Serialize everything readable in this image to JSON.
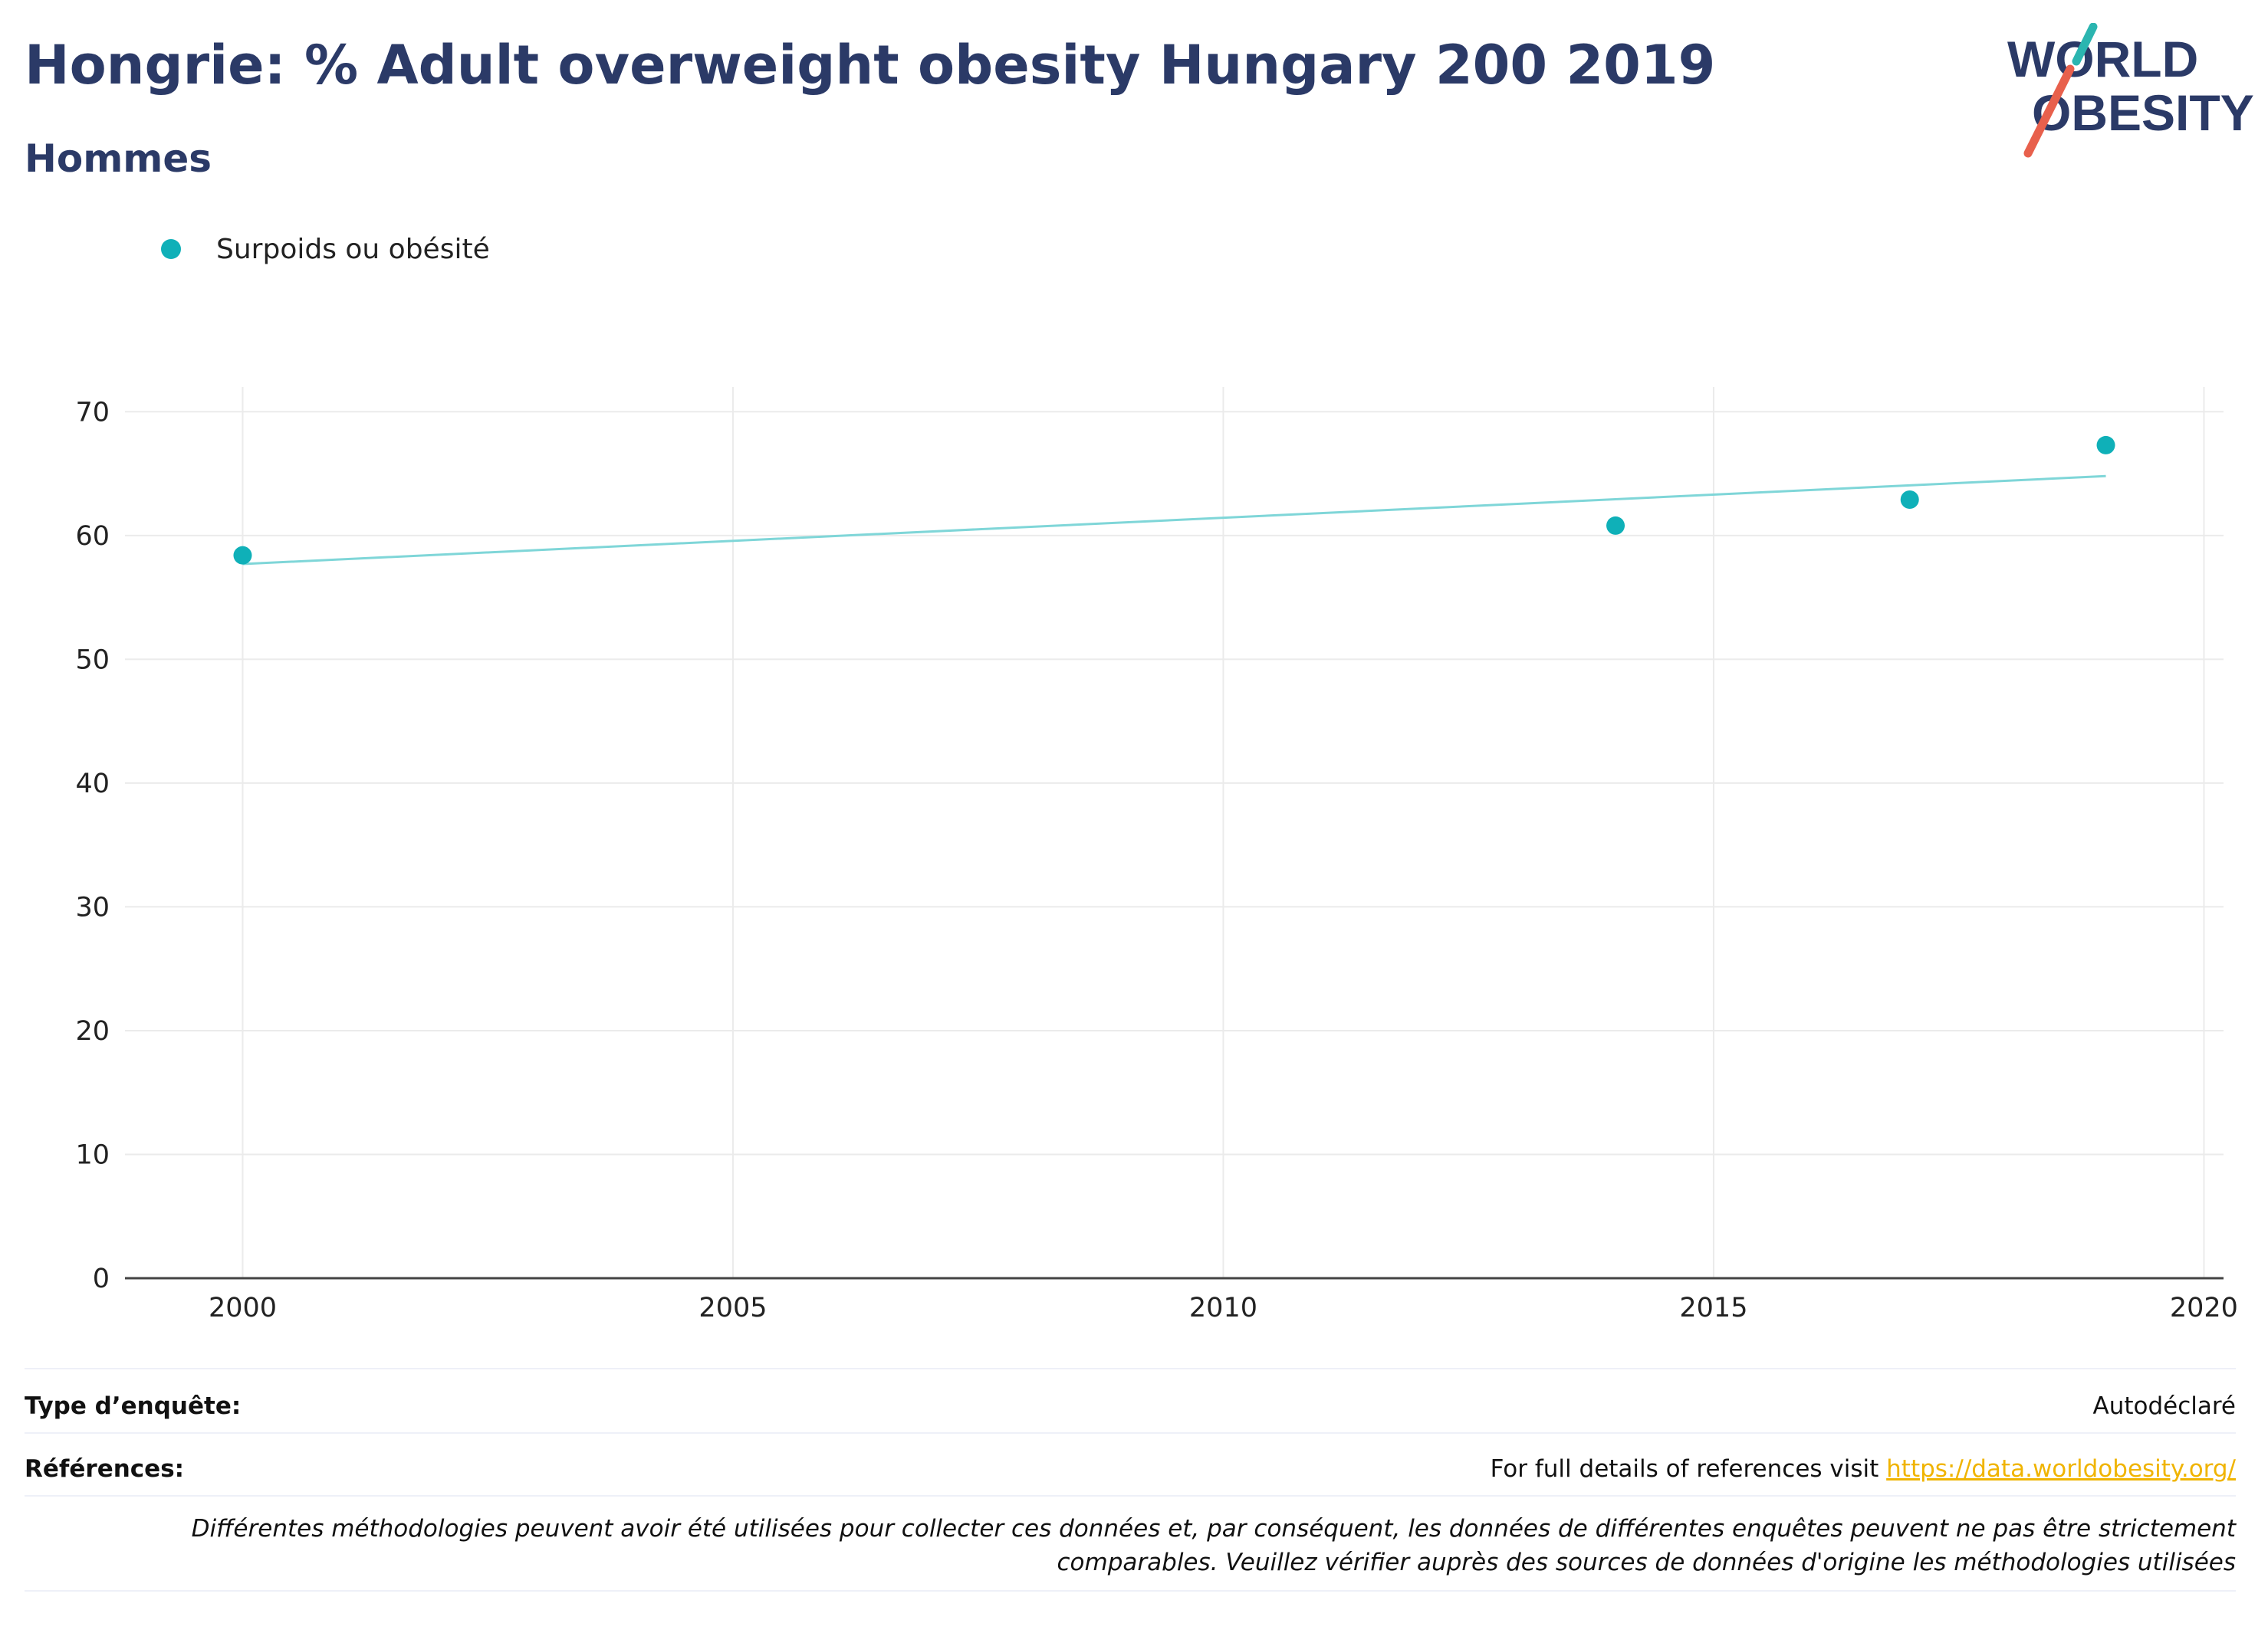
{
  "header": {
    "title": "Hongrie: % Adult overweight obesity Hungary 200 2019",
    "subtitle": "Hommes"
  },
  "logo": {
    "line1": "WORLD",
    "line2": "OBESITY",
    "accent_teal": "#2bb5b0",
    "accent_red": "#e8604c",
    "color": "#2b3a67"
  },
  "legend": {
    "label": "Surpoids ou obésité",
    "color": "#0fb0b8"
  },
  "chart_data": {
    "type": "scatter",
    "series": [
      {
        "name": "Surpoids ou obésité",
        "x": [
          2000,
          2014,
          2017,
          2019
        ],
        "y": [
          58.4,
          60.8,
          62.9,
          67.3
        ],
        "color": "#0fb0b8"
      }
    ],
    "trendline": {
      "x": [
        2000,
        2019
      ],
      "y": [
        57.7,
        64.8
      ],
      "color": "#7fd6d8"
    },
    "xlim": [
      1998.8,
      2020.2
    ],
    "ylim": [
      0,
      72
    ],
    "xticks": [
      2000,
      2005,
      2010,
      2015,
      2020
    ],
    "yticks": [
      0,
      10,
      20,
      30,
      40,
      50,
      60,
      70
    ],
    "grid": true
  },
  "footer": {
    "survey_type_label": "Type d’enquête:",
    "survey_type_value": "Autodéclaré",
    "references_label": "Références:",
    "references_text": "For full details of references visit ",
    "references_link": "https://data.worldobesity.org/",
    "note": "Différentes méthodologies peuvent avoir été utilisées pour collecter ces données et, par conséquent, les données de différentes enquêtes peuvent ne pas être strictement comparables. Veuillez vérifier auprès des sources de données d'origine les méthodologies utilisées"
  }
}
